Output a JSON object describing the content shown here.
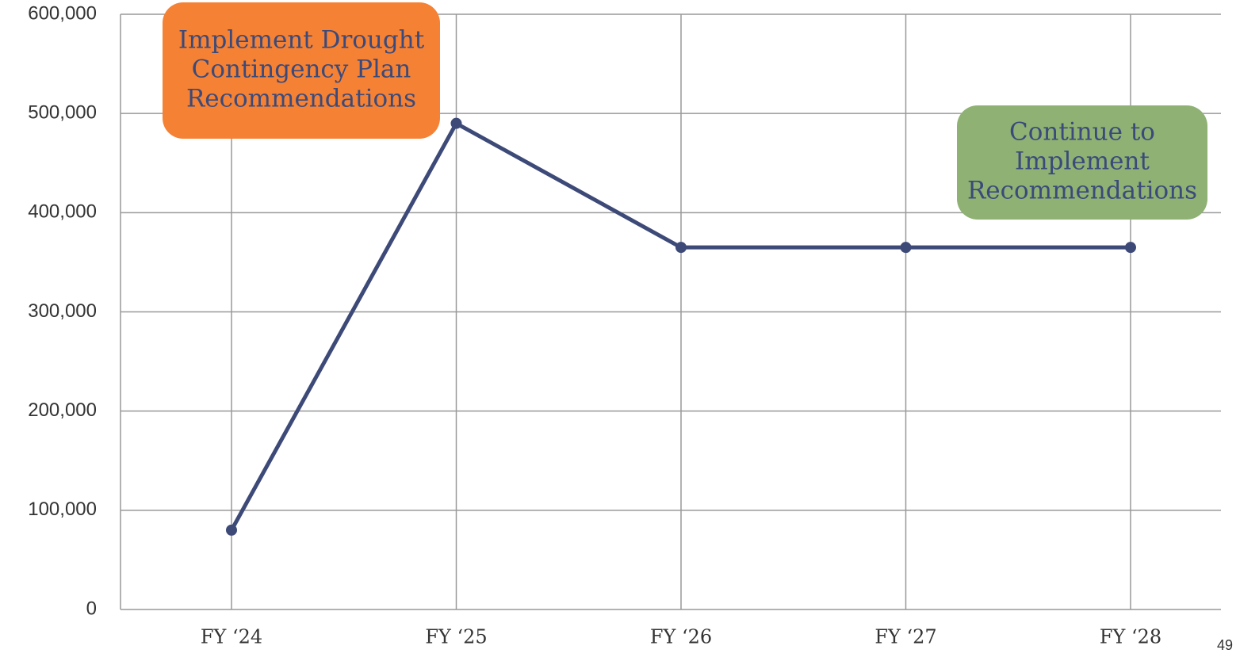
{
  "chart_data": {
    "type": "line",
    "categories": [
      "FY ‘24",
      "FY ‘25",
      "FY ‘26",
      "FY ‘27",
      "FY ‘28"
    ],
    "series": [
      {
        "color": "#3d4a78",
        "values": [
          80000,
          490000,
          365000,
          365000,
          365000
        ]
      }
    ],
    "ylim": [
      0,
      600000
    ],
    "yticks": [
      0,
      {
        "value": 100000,
        "label": "100,000"
      },
      {
        "value": 200000,
        "label": "200,000"
      },
      {
        "value": 300000,
        "label": "300,000"
      },
      {
        "value": 400000,
        "label": "400,000"
      },
      {
        "value": 500000,
        "label": "500,000"
      },
      {
        "value": 600000,
        "label": "600,000"
      }
    ],
    "grid": true,
    "annotations": [
      {
        "lines": [
          "Implement Drought",
          "Contingency Plan",
          "Recommendations"
        ],
        "color": "#f58134"
      },
      {
        "lines": [
          "Continue to",
          "Implement",
          "Recommendations"
        ],
        "color": "#8fb174"
      }
    ]
  },
  "page_number": "49"
}
